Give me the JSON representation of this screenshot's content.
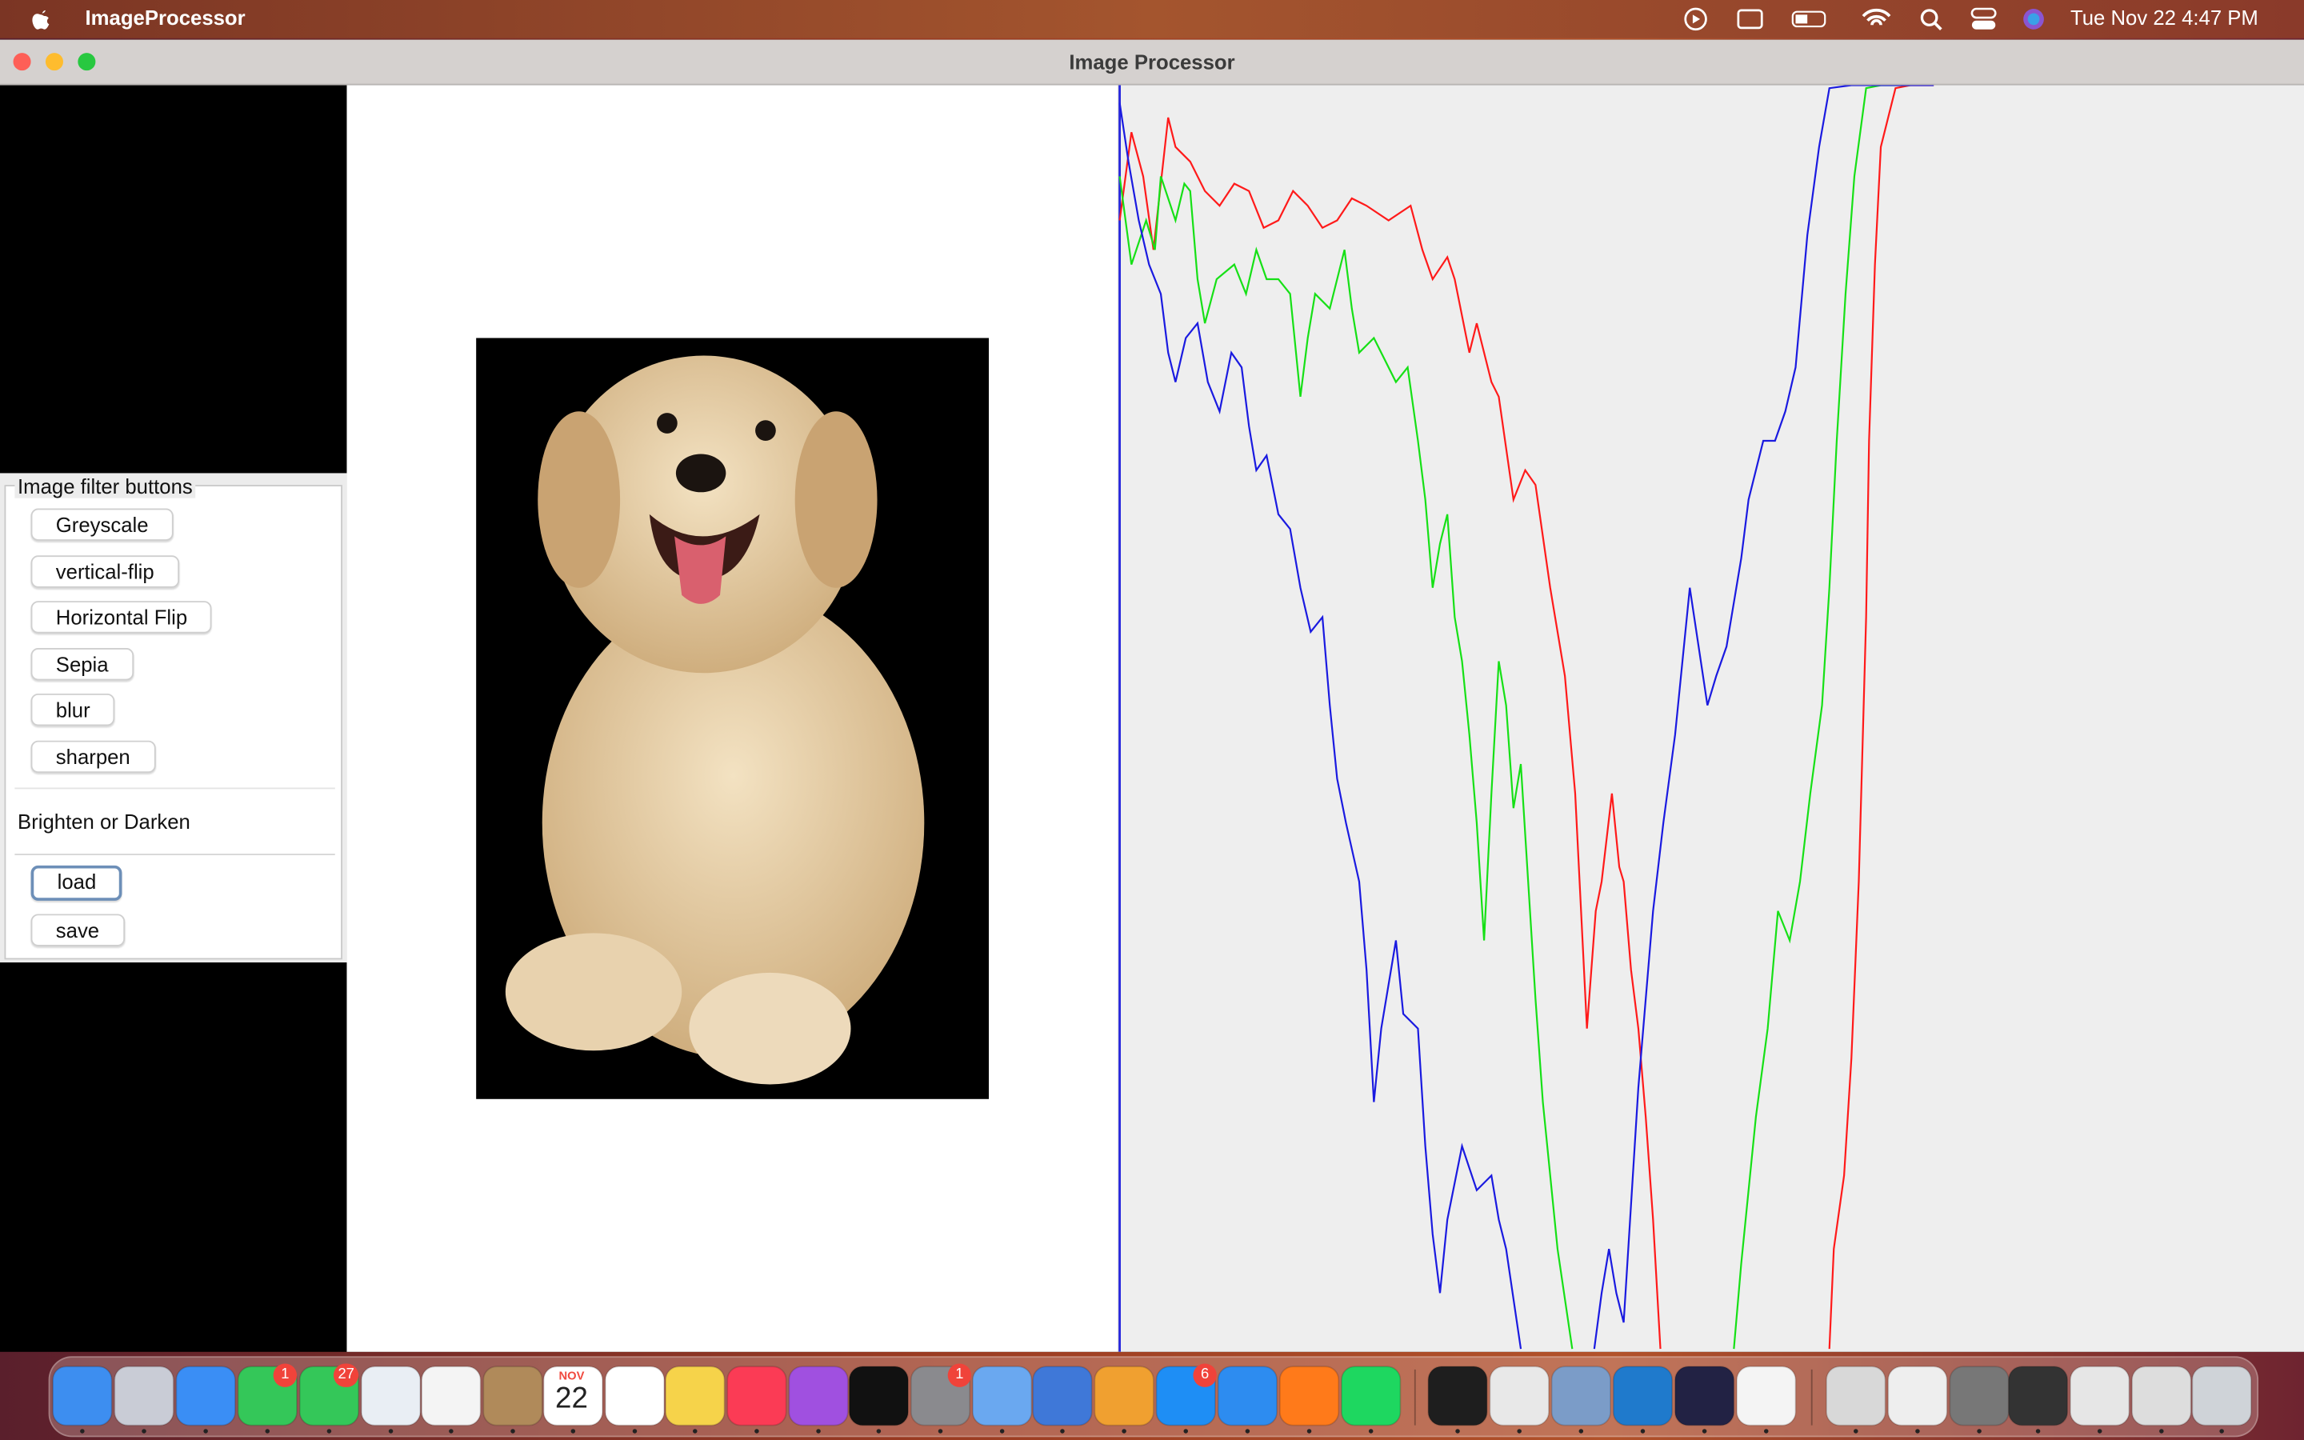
{
  "menu_bar": {
    "app_name": "ImageProcessor",
    "clock": "Tue Nov 22  4:47 PM"
  },
  "window": {
    "title": "Image Processor"
  },
  "filter_panel": {
    "title": "Image filter buttons",
    "buttons": [
      "Greyscale",
      "vertical-flip",
      "Horizontal Flip",
      "Sepia",
      "blur",
      "sharpen"
    ],
    "brightness_label": "Brighten or Darken",
    "file_buttons": [
      "load",
      "save"
    ]
  },
  "dock": {
    "calendar_month": "NOV",
    "calendar_day": "22",
    "badges": [
      "1",
      "27",
      "1",
      "6"
    ]
  }
}
